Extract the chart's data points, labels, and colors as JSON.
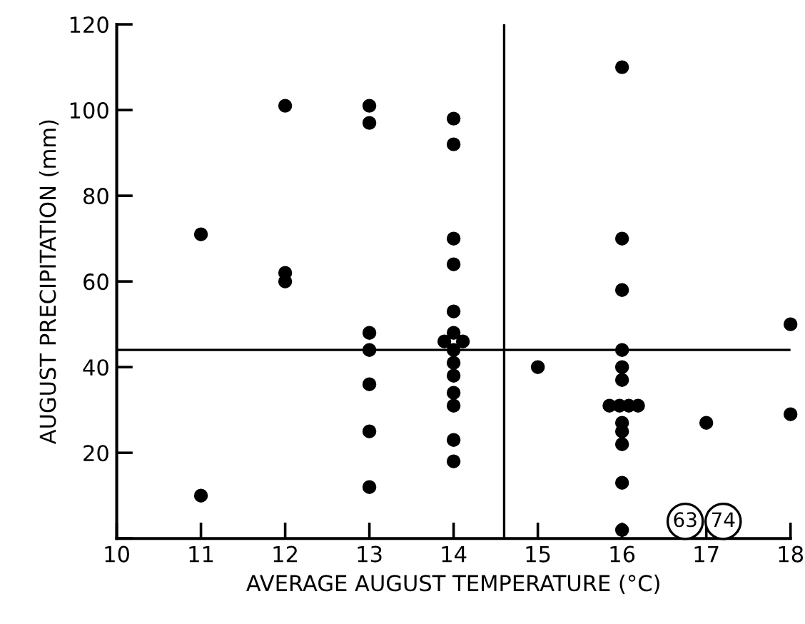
{
  "chart_data": {
    "type": "scatter",
    "xlabel": "AVERAGE AUGUST TEMPERATURE (°C)",
    "ylabel": "AUGUST PRECIPITATION (mm)",
    "x": [
      11,
      11,
      12,
      12,
      12,
      13,
      13,
      13,
      13,
      13,
      13,
      13,
      14,
      14,
      14,
      14,
      14,
      14,
      13.89,
      14,
      14.11,
      14,
      14,
      14,
      14,
      14,
      14,
      14,
      15,
      16,
      16,
      16,
      16,
      16,
      16,
      15.85,
      15.97,
      16.08,
      16.19,
      16,
      16,
      16,
      16,
      16,
      17,
      18,
      18
    ],
    "series": [
      {
        "color": "#000000",
        "values": [
          71,
          10,
          101,
          62,
          60,
          101,
          97,
          48,
          44,
          36,
          25,
          12,
          98,
          92,
          70,
          64,
          53,
          48,
          46,
          null,
          46,
          44,
          41,
          38,
          34,
          31,
          23,
          18,
          40,
          110,
          70,
          58,
          44,
          40,
          37,
          31,
          31,
          31,
          31,
          27,
          25,
          22,
          13,
          2,
          27,
          50,
          29
        ]
      }
    ],
    "xlim": [
      10,
      18
    ],
    "ylim": [
      0,
      120
    ],
    "xticks": [
      10,
      11,
      12,
      13,
      14,
      15,
      16,
      17,
      18
    ],
    "yticks": [
      {
        "value": 0,
        "label": null
      },
      20,
      40,
      60,
      80,
      100,
      120
    ],
    "ref_lines": [
      {
        "axis": "y",
        "value": 44
      },
      {
        "axis": "x",
        "value": 14.6
      }
    ],
    "annotations": [
      {
        "text": "63",
        "x": 16.75,
        "y": 4
      },
      {
        "text": "74",
        "x": 17.2,
        "y": 4
      }
    ],
    "marker": "circle",
    "grid": false,
    "legend": false
  }
}
